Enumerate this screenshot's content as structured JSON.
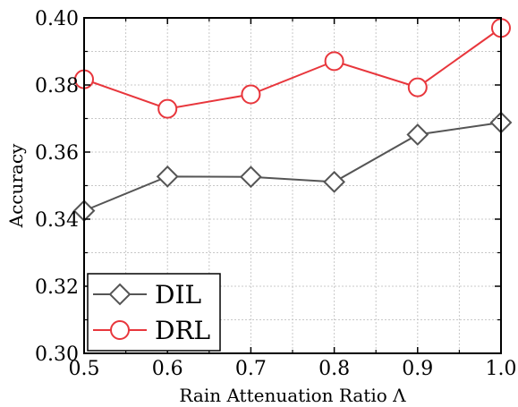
{
  "chart_data": {
    "type": "line",
    "title": "",
    "xlabel": "Rain Attenuation Ratio Λ",
    "ylabel": "Accuracy",
    "x": [
      0.5,
      0.6,
      0.7,
      0.8,
      0.9,
      1.0
    ],
    "xlim": [
      0.5,
      1.0
    ],
    "ylim": [
      0.3,
      0.4
    ],
    "xticks": [
      "0.5",
      "0.6",
      "0.7",
      "0.8",
      "0.9",
      "1.0"
    ],
    "yticks": [
      "0.30",
      "0.32",
      "0.34",
      "0.36",
      "0.38",
      "0.40"
    ],
    "grid": true,
    "legend_position": "bottom-left",
    "series": [
      {
        "name": "DIL",
        "values": [
          0.3425,
          0.3527,
          0.3526,
          0.3511,
          0.3652,
          0.3688
        ],
        "color": "#555555",
        "marker": "diamond"
      },
      {
        "name": "DRL",
        "values": [
          0.3817,
          0.3729,
          0.3772,
          0.3871,
          0.3793,
          0.397
        ],
        "color": "#e8363c",
        "marker": "circle"
      }
    ]
  }
}
